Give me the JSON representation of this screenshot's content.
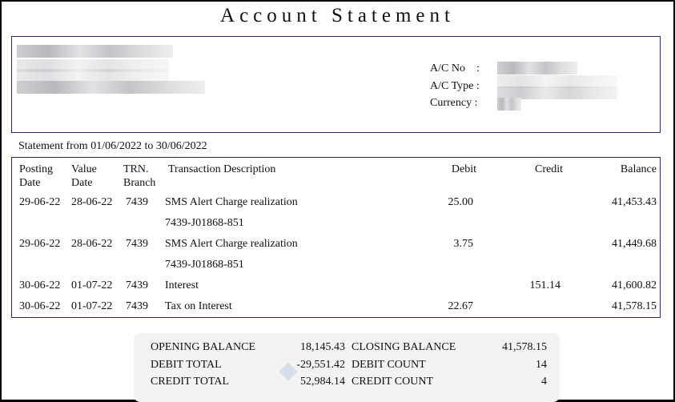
{
  "title": "Account Statement",
  "account": {
    "no_label": "A/C No",
    "type_label": "A/C Type",
    "currency_label": "Currency",
    "sep": ":"
  },
  "period": "Statement from 01/06/2022 to 30/06/2022",
  "table": {
    "headers": {
      "posting": [
        "Posting",
        "Date"
      ],
      "value": [
        "Value",
        "Date"
      ],
      "trn": [
        "TRN.",
        "Branch"
      ],
      "desc": "Transaction Description",
      "debit": "Debit",
      "credit": "Credit",
      "balance": "Balance"
    },
    "rows": [
      {
        "posting": "29-06-22",
        "value": "28-06-22",
        "trn": "7439",
        "desc": "SMS Alert Charge realization",
        "ref": "7439-J01868-851",
        "debit": "25.00",
        "credit": "",
        "balance": "41,453.43"
      },
      {
        "posting": "29-06-22",
        "value": "28-06-22",
        "trn": "7439",
        "desc": "SMS Alert Charge realization",
        "ref": "7439-J01868-851",
        "debit": "3.75",
        "credit": "",
        "balance": "41,449.68"
      },
      {
        "posting": "30-06-22",
        "value": "01-07-22",
        "trn": "7439",
        "desc": "Interest",
        "ref": "",
        "debit": "",
        "credit": "151.14",
        "balance": "41,600.82"
      },
      {
        "posting": "30-06-22",
        "value": "01-07-22",
        "trn": "7439",
        "desc": "Tax on Interest",
        "ref": "",
        "debit": "22.67",
        "credit": "",
        "balance": "41,578.15"
      }
    ]
  },
  "summary": {
    "opening_label": "OPENING BALANCE",
    "opening": "18,145.43",
    "closing_label": "CLOSING BALANCE",
    "closing": "41,578.15",
    "debit_total_label": "DEBIT TOTAL",
    "debit_total": "-29,551.42",
    "debit_count_label": "DEBIT COUNT",
    "debit_count": "14",
    "credit_total_label": "CREDIT TOTAL",
    "credit_total": "52,984.14",
    "credit_count_label": "CREDIT COUNT",
    "credit_count": "4"
  },
  "watermark": "exceldemy"
}
